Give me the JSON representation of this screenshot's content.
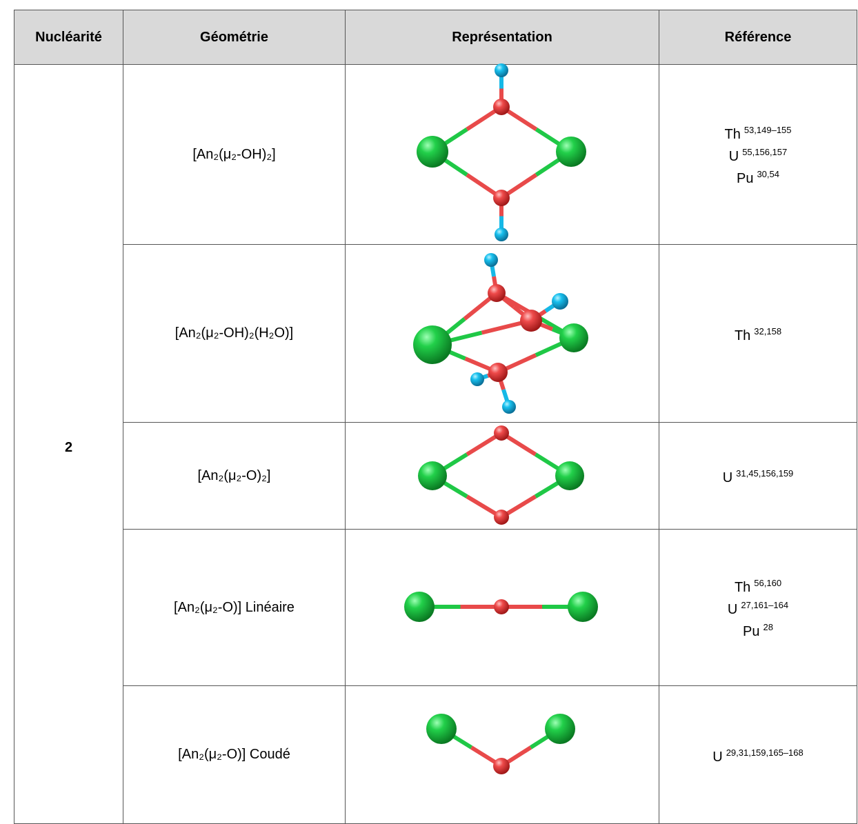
{
  "header": {
    "columns": [
      "Nucléarité",
      "Géométrie",
      "Représentation",
      "Référence"
    ]
  },
  "table": {
    "nuclearity": "2",
    "rows": [
      {
        "geometry": "[An₂(μ₂-OH)₂]",
        "references": [
          {
            "element": "Th",
            "refs": "53,149–155"
          },
          {
            "element": "U",
            "refs": "55,156,157"
          },
          {
            "element": "Pu",
            "refs": "30,54"
          }
        ]
      },
      {
        "geometry": "[An₂(μ₂-OH)₂(H₂O)]",
        "references": [
          {
            "element": "Th",
            "refs": "32,158"
          }
        ]
      },
      {
        "geometry": "[An₂(μ₂-O)₂]",
        "references": [
          {
            "element": "U",
            "refs": "31,45,156,159"
          }
        ]
      },
      {
        "geometry": "[An₂(μ₂-O)] Linéaire",
        "references": [
          {
            "element": "Th",
            "refs": "56,160"
          },
          {
            "element": "U",
            "refs": "27,161–164"
          },
          {
            "element": "Pu",
            "refs": "28"
          }
        ]
      },
      {
        "geometry": "[An₂(μ₂-O)] Coudé",
        "references": [
          {
            "element": "U",
            "refs": "29,31,159,165–168"
          }
        ]
      }
    ]
  }
}
